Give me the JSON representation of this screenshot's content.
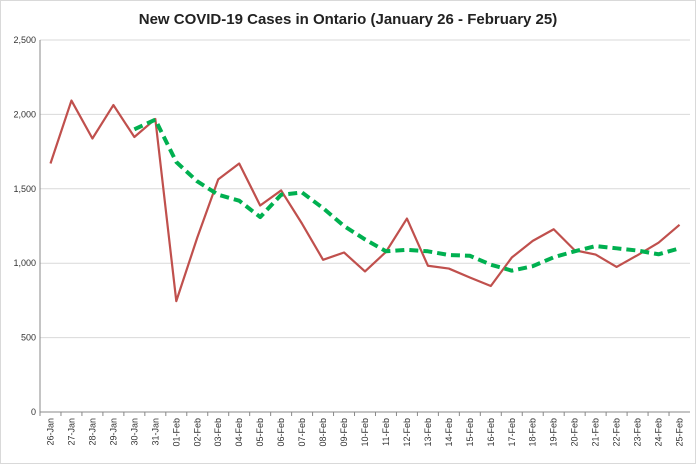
{
  "chart_data": {
    "type": "line",
    "title": "New COVID-19 Cases in Ontario (January 26 - February 25)",
    "categories": [
      "26-Jan",
      "27-Jan",
      "28-Jan",
      "29-Jan",
      "30-Jan",
      "31-Jan",
      "01-Feb",
      "02-Feb",
      "03-Feb",
      "04-Feb",
      "05-Feb",
      "06-Feb",
      "07-Feb",
      "08-Feb",
      "09-Feb",
      "10-Feb",
      "11-Feb",
      "12-Feb",
      "13-Feb",
      "14-Feb",
      "15-Feb",
      "16-Feb",
      "17-Feb",
      "18-Feb",
      "19-Feb",
      "20-Feb",
      "21-Feb",
      "22-Feb",
      "23-Feb",
      "24-Feb",
      "25-Feb"
    ],
    "series": [
      {
        "color": "#c0504d",
        "dashed": false,
        "values": [
          1670,
          2093,
          1838,
          2063,
          1848,
          1969,
          745,
          1172,
          1563,
          1670,
          1388,
          1489,
          1265,
          1023,
          1072,
          945,
          1076,
          1300,
          983,
          964,
          904,
          847,
          1038,
          1150,
          1228,
          1087,
          1058,
          975,
          1054,
          1138,
          1258
        ]
      },
      {
        "color": "#00b050",
        "dashed": true,
        "values": [
          null,
          null,
          null,
          null,
          1900,
          1965,
          1680,
          1550,
          1460,
          1420,
          1310,
          1460,
          1475,
          1370,
          1250,
          1160,
          1080,
          1090,
          1080,
          1055,
          1050,
          990,
          950,
          980,
          1040,
          1080,
          1115,
          1100,
          1085,
          1060,
          1100
        ]
      }
    ],
    "ylim": [
      0,
      2500
    ],
    "yticks": [
      0,
      500,
      {
        "value": 1000,
        "label": "1,000"
      },
      {
        "value": 1500,
        "label": "1,500"
      },
      {
        "value": 2000,
        "label": "2,000"
      },
      {
        "value": 2500,
        "label": "2,500"
      }
    ],
    "grid": true
  }
}
